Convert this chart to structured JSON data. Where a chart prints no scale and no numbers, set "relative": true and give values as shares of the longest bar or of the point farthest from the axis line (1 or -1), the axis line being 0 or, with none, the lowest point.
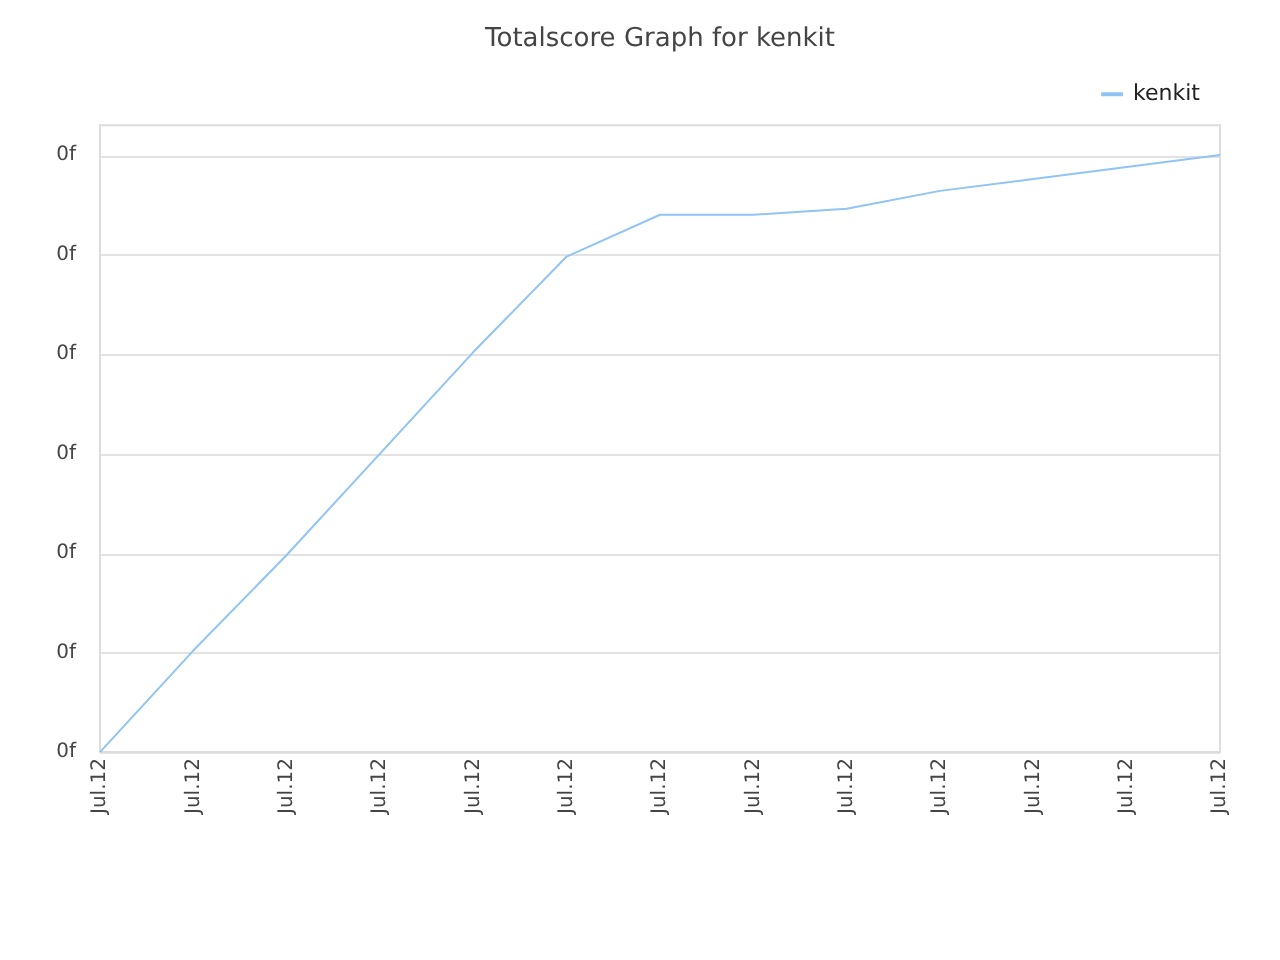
{
  "chart_data": {
    "type": "line",
    "title": "Totalscore Graph for kenkit",
    "relative": true,
    "categories": [
      "Jul.12",
      "Jul.12",
      "Jul.12",
      "Jul.12",
      "Jul.12",
      "Jul.12",
      "Jul.12",
      "Jul.12",
      "Jul.12",
      "Jul.12",
      "Jul.12",
      "Jul.12",
      "Jul.12"
    ],
    "series": [
      {
        "name": "kenkit",
        "color": "#90c4f4",
        "values": [
          0,
          0.17,
          0.33,
          0.5,
          0.67,
          0.83,
          0.9,
          0.9,
          0.91,
          0.94,
          0.96,
          0.98,
          1
        ]
      }
    ],
    "annotations": [
      "0f",
      "0f",
      "0f",
      "0f",
      "0f",
      "0f",
      "0f"
    ],
    "grid": "y",
    "legend": "top right",
    "marker": "none",
    "line_style": "solid"
  }
}
